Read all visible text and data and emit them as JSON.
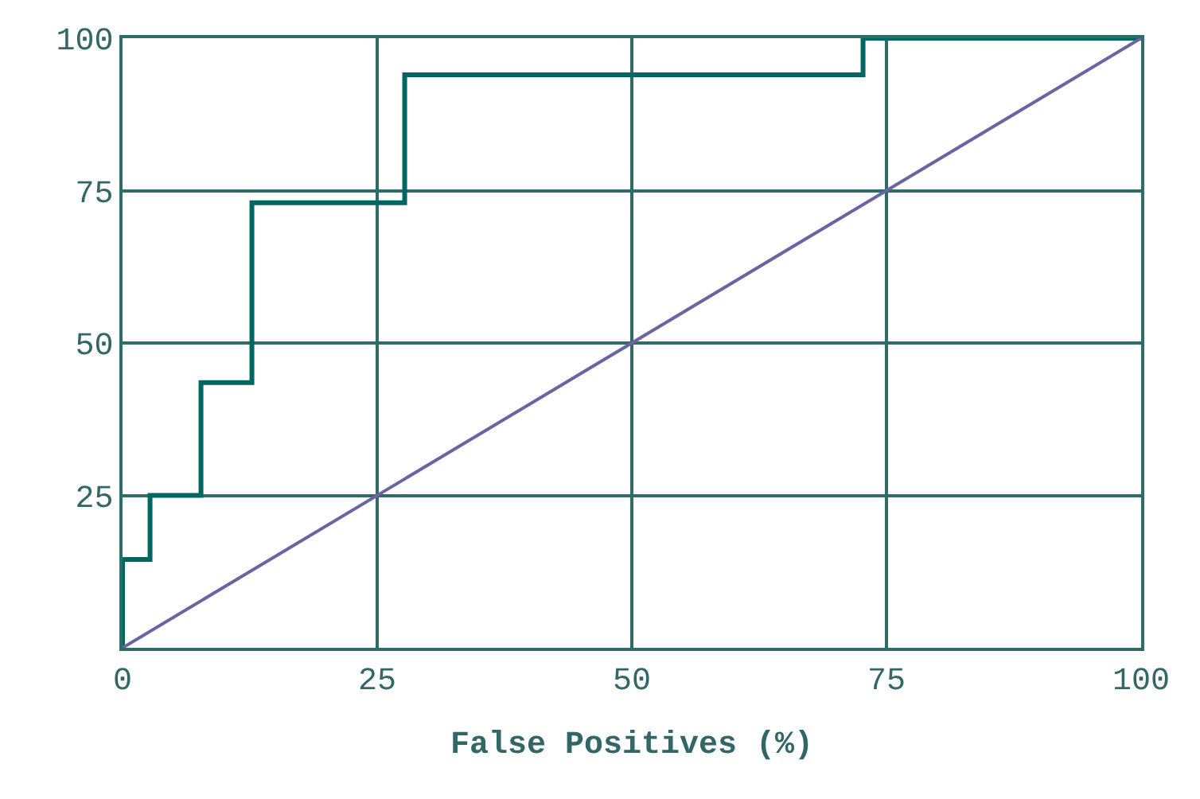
{
  "chart_data": {
    "type": "line",
    "xlabel": "False Positives (%)",
    "series": [
      {
        "type": "step",
        "color": "#006661",
        "x": [
          0,
          2.7,
          7.7,
          12.7,
          27.7,
          72.7,
          100
        ],
        "values": [
          0,
          14.5,
          25,
          43.5,
          73,
          94,
          100
        ]
      },
      {
        "color": "#6b64a3",
        "x": [
          0,
          100
        ],
        "values": [
          0,
          100
        ]
      }
    ],
    "xlim": [
      0,
      100
    ],
    "ylim": [
      0,
      100
    ],
    "xticks": [
      0,
      25,
      50,
      75,
      100
    ],
    "yticks": [
      {
        "value": 0,
        "label": null
      },
      25,
      50,
      75,
      100
    ],
    "grid": true,
    "legend": false
  }
}
